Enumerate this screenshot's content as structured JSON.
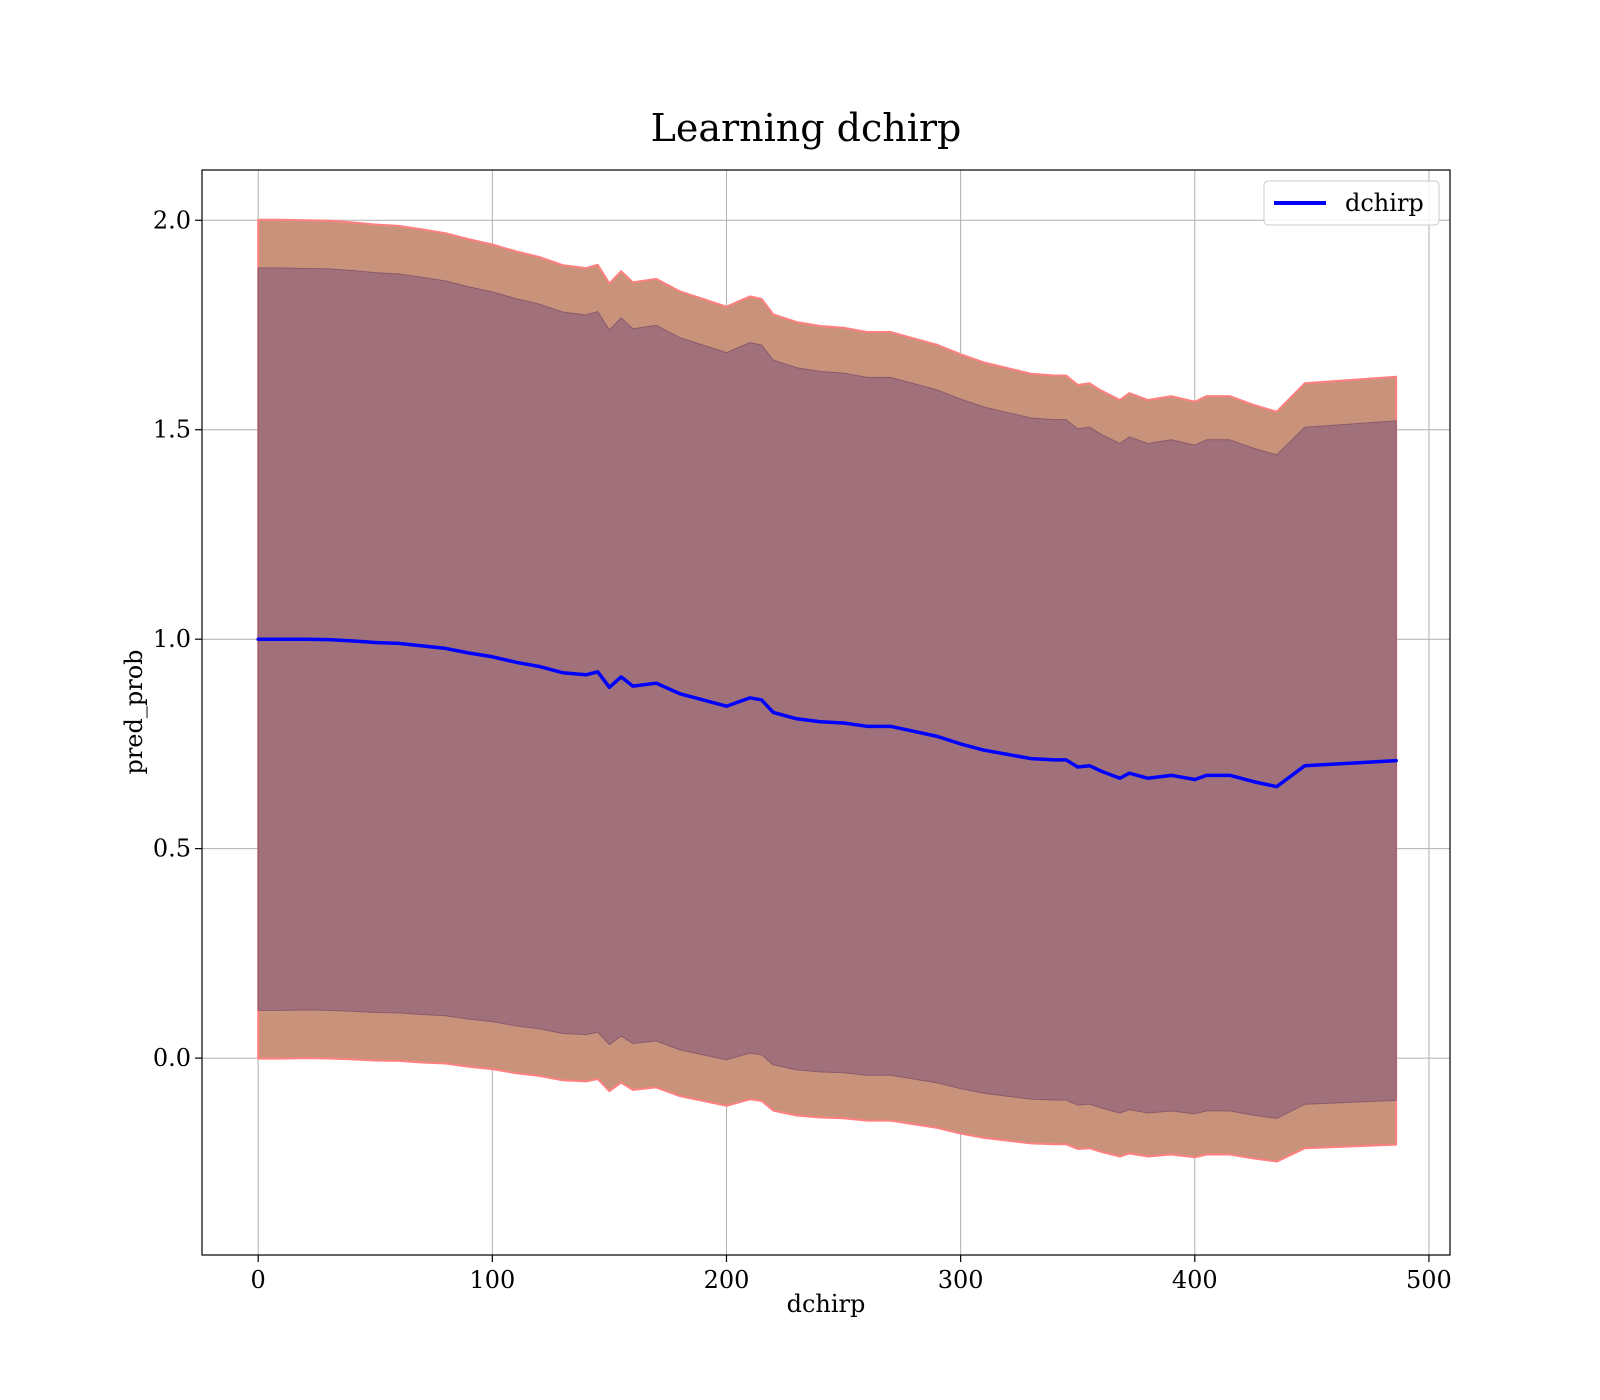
{
  "chart_data": {
    "type": "line",
    "title": "Learning dchirp",
    "xlabel": "dchirp",
    "ylabel": "pred_prob",
    "xlim": [
      -24,
      509
    ],
    "ylim": [
      -0.47,
      2.12
    ],
    "xticks": [
      0,
      100,
      200,
      300,
      400,
      500
    ],
    "yticks": [
      0.0,
      0.5,
      1.0,
      1.5,
      2.0
    ],
    "xtick_labels": [
      "0",
      "100",
      "200",
      "300",
      "400",
      "500"
    ],
    "ytick_labels": [
      "0.0",
      "0.5",
      "1.0",
      "1.5",
      "2.0"
    ],
    "grid": true,
    "legend": {
      "position": "top-right",
      "entries": [
        "dchirp"
      ]
    },
    "colors": {
      "line": "#0000ff",
      "outer_band": "#c8937a",
      "outer_band_edge": "#ff8080",
      "inner_band": "#a1717b",
      "inner_band_edge": "#8a5a6e",
      "grid": "#b0b0b0"
    },
    "series": [
      {
        "name": "dchirp",
        "x": [
          0,
          10,
          20,
          30,
          40,
          50,
          60,
          70,
          80,
          90,
          100,
          110,
          120,
          130,
          140,
          145,
          150,
          155,
          160,
          170,
          180,
          190,
          200,
          205,
          210,
          215,
          220,
          230,
          240,
          250,
          260,
          270,
          280,
          290,
          300,
          310,
          320,
          330,
          340,
          345,
          350,
          355,
          360,
          368,
          372,
          380,
          390,
          400,
          405,
          415,
          425,
          435,
          447,
          486
        ],
        "y": [
          1.0,
          1.0,
          1.0,
          0.999,
          0.996,
          0.992,
          0.99,
          0.984,
          0.978,
          0.967,
          0.958,
          0.945,
          0.935,
          0.92,
          0.915,
          0.922,
          0.885,
          0.91,
          0.888,
          0.895,
          0.87,
          0.855,
          0.84,
          0.85,
          0.86,
          0.855,
          0.825,
          0.81,
          0.803,
          0.8,
          0.792,
          0.792,
          0.78,
          0.768,
          0.75,
          0.735,
          0.725,
          0.715,
          0.712,
          0.712,
          0.695,
          0.698,
          0.685,
          0.668,
          0.68,
          0.668,
          0.675,
          0.665,
          0.675,
          0.675,
          0.66,
          0.648,
          0.698,
          0.71
        ],
        "std": [
          0.886,
          0.886,
          0.885,
          0.885,
          0.884,
          0.883,
          0.882,
          0.88,
          0.877,
          0.874,
          0.871,
          0.868,
          0.865,
          0.861,
          0.859,
          0.86,
          0.853,
          0.857,
          0.853,
          0.854,
          0.85,
          0.847,
          0.844,
          0.846,
          0.848,
          0.847,
          0.841,
          0.838,
          0.836,
          0.835,
          0.833,
          0.833,
          0.83,
          0.827,
          0.823,
          0.819,
          0.816,
          0.813,
          0.812,
          0.812,
          0.807,
          0.808,
          0.804,
          0.799,
          0.803,
          0.799,
          0.801,
          0.798,
          0.801,
          0.801,
          0.796,
          0.792,
          0.808,
          0.811
        ]
      }
    ]
  }
}
